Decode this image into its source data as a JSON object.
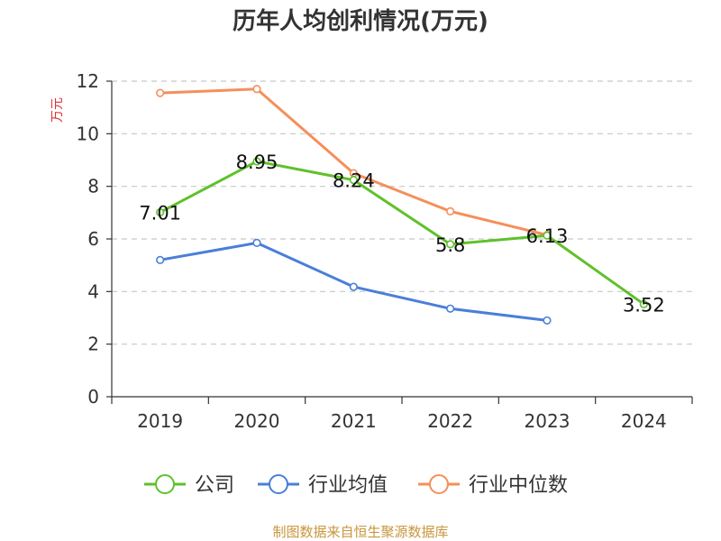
{
  "chart_data": {
    "type": "line",
    "title": "历年人均创利情况(万元)",
    "xlabel": "",
    "ylabel": "万元",
    "categories": [
      "2019",
      "2020",
      "2021",
      "2022",
      "2023",
      "2024"
    ],
    "ylim": [
      0,
      12
    ],
    "yticks": [
      0,
      2,
      4,
      6,
      8,
      10,
      12
    ],
    "grid": true,
    "legend_position": "bottom",
    "series": [
      {
        "name": "公司",
        "color": "#5fc12a",
        "values": [
          7.01,
          8.95,
          8.24,
          5.8,
          6.13,
          3.52
        ],
        "labels": [
          "7.01",
          "8.95",
          "8.24",
          "5.8",
          "6.13",
          "3.52"
        ]
      },
      {
        "name": "行业均值",
        "color": "#4a7fd8",
        "values": [
          5.2,
          5.85,
          4.18,
          3.35,
          2.9,
          null
        ]
      },
      {
        "name": "行业中位数",
        "color": "#f58f5a",
        "values": [
          11.55,
          11.7,
          8.5,
          7.05,
          6.15,
          null
        ]
      }
    ]
  },
  "source": "制图数据来自恒生聚源数据库"
}
